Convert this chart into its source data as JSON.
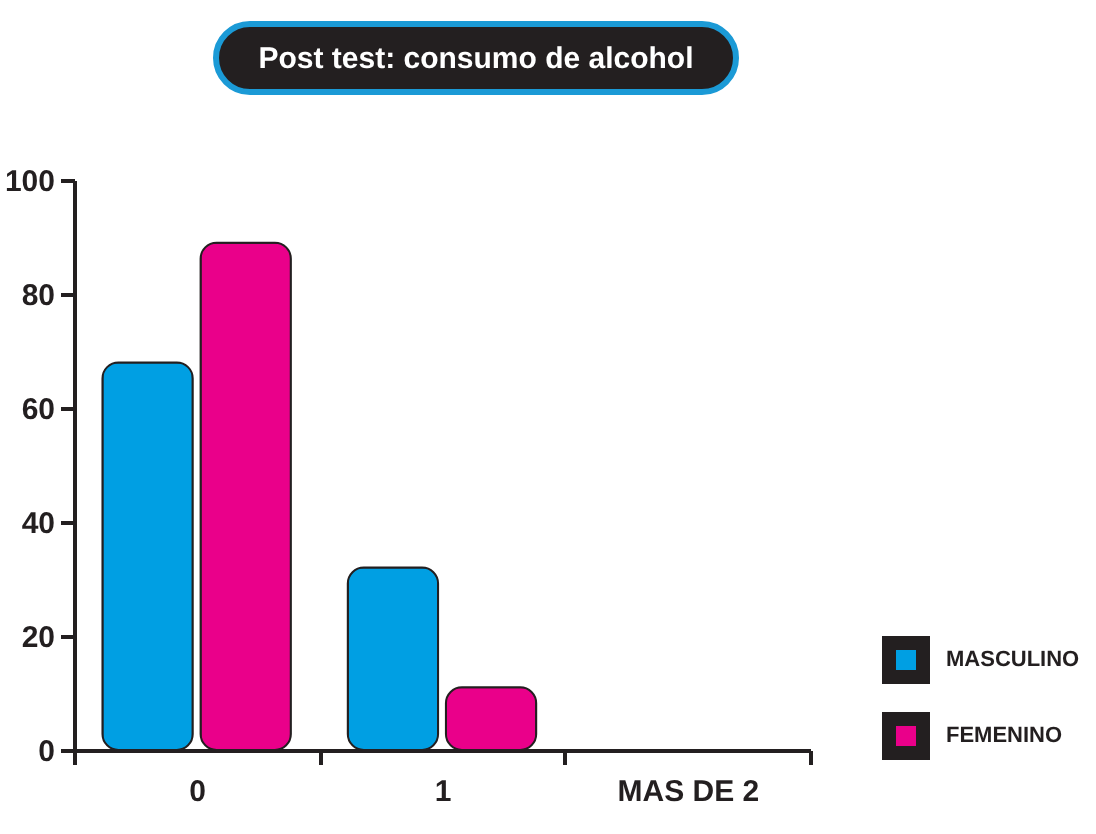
{
  "chart_data": {
    "type": "bar",
    "title": "Post test: consumo de alcohol",
    "categories": [
      "0",
      "1",
      "MAS DE 2"
    ],
    "series": [
      {
        "name": "MASCULINO",
        "color": "#009fe3",
        "values": [
          68,
          32,
          null
        ]
      },
      {
        "name": "FEMENINO",
        "color": "#ea008a",
        "values": [
          89,
          11,
          null
        ]
      }
    ],
    "ylim": [
      0,
      100
    ],
    "yticks": [
      0,
      20,
      40,
      60,
      80,
      100
    ],
    "legend": "bottom right"
  }
}
